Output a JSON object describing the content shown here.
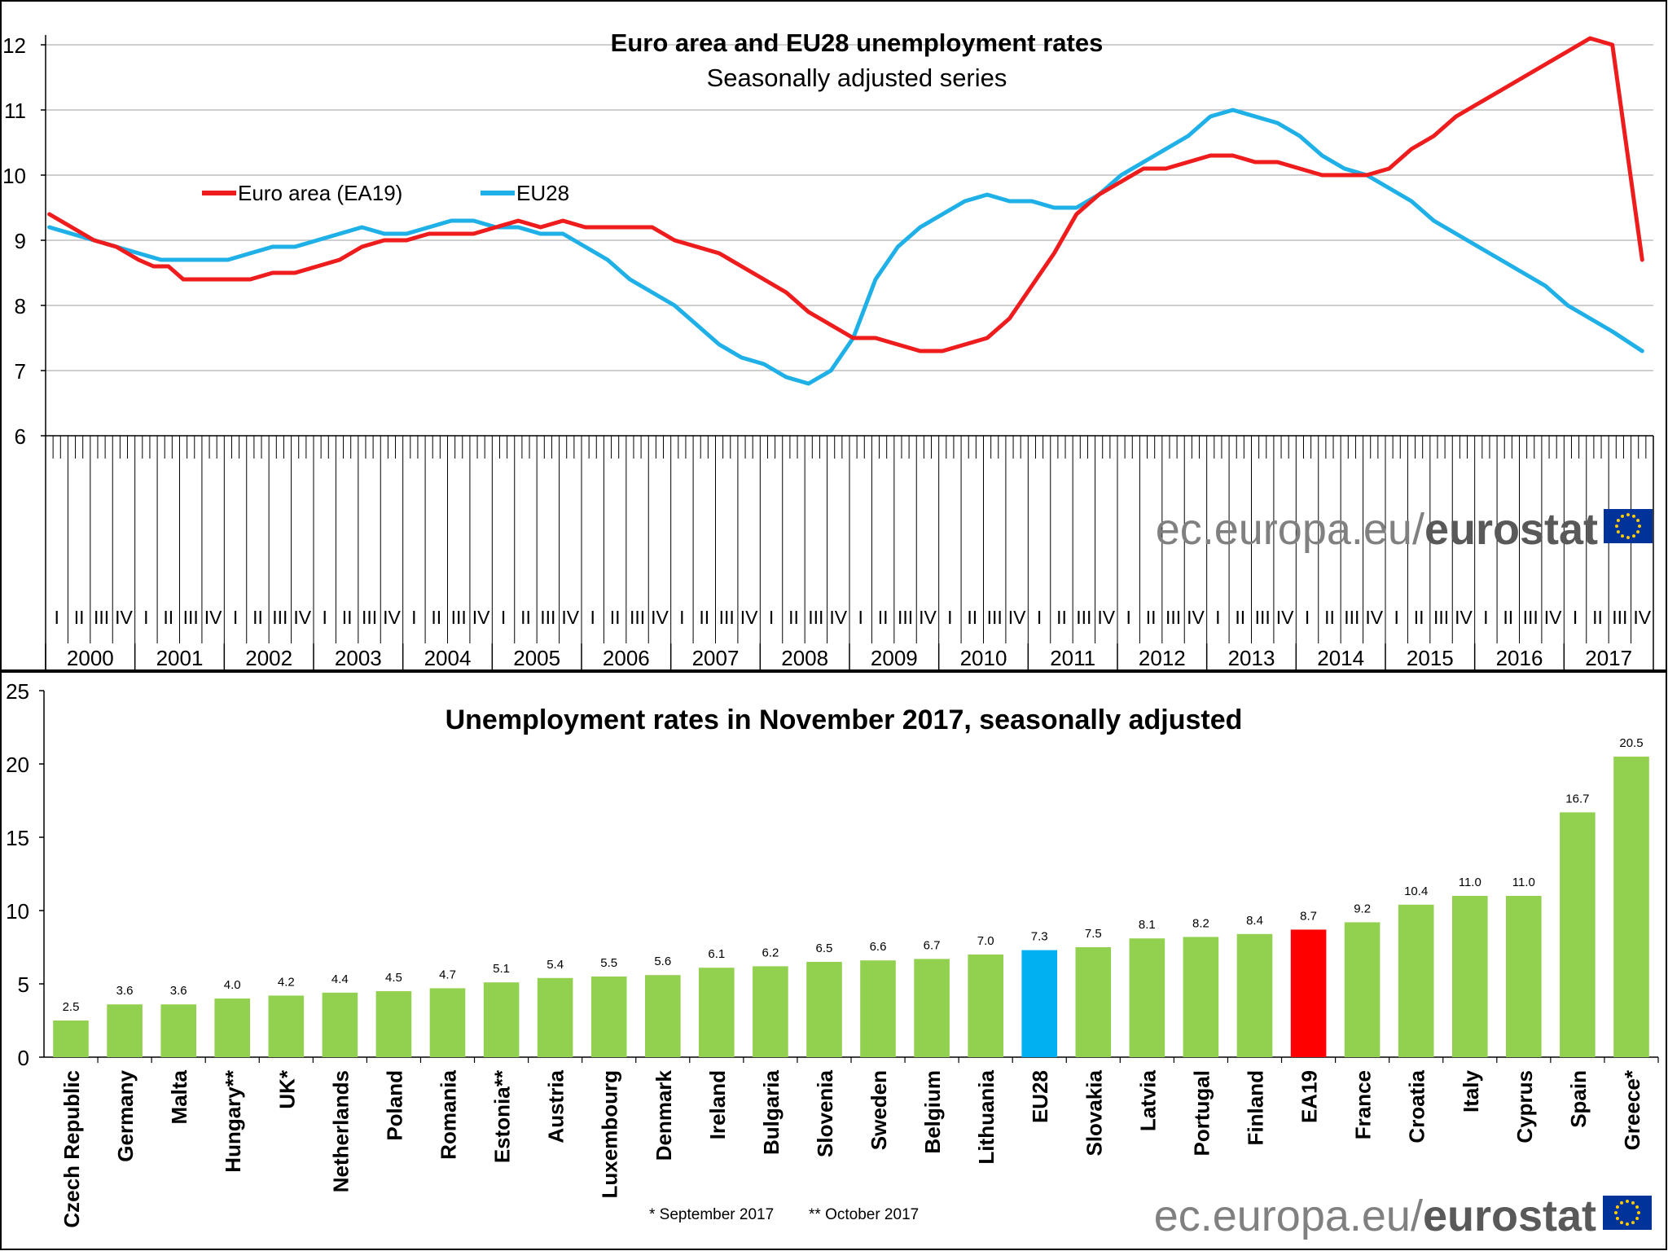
{
  "top": {
    "title": "Euro area and EU28 unemployment rates",
    "subtitle": "Seasonally adjusted series",
    "legend": [
      "Euro area (EA19)",
      "EU28"
    ],
    "watermark": {
      "plain": "ec.europa.eu/",
      "bold": "eurostat"
    }
  },
  "bottom": {
    "title": "Unemployment rates in November 2017, seasonally adjusted",
    "footnote1": "* September  2017",
    "footnote2": "** October 2017",
    "watermark": {
      "plain": "ec.europa.eu/",
      "bold": "eurostat"
    }
  },
  "colors": {
    "ea": "#ee1c1c",
    "eu": "#1eb0e6",
    "bar": "#92d050",
    "bar_eu": "#00b0f0",
    "bar_ea": "#ff0000"
  },
  "chart_data": [
    {
      "type": "line",
      "title": "Euro area and EU28 unemployment rates",
      "subtitle": "Seasonally adjusted series",
      "ylim": [
        6,
        12
      ],
      "yticks": [
        6,
        7,
        8,
        9,
        10,
        11,
        12
      ],
      "grid": true,
      "legend_position": "top-left",
      "quarter_labels": [
        "I",
        "II",
        "III",
        "IV"
      ],
      "years": [
        "2000",
        "2001",
        "2002",
        "2003",
        "2004",
        "2005",
        "2006",
        "2007",
        "2008",
        "2009",
        "2010",
        "2011",
        "2012",
        "2013",
        "2014",
        "2015",
        "2016",
        "2017"
      ],
      "x_start": "2000-01",
      "x_end": "2017-11",
      "series": [
        {
          "name": "Euro area (EA19)",
          "points": [
            [
              "2000-01",
              9.4
            ],
            [
              "2000-04",
              9.2
            ],
            [
              "2000-07",
              9.0
            ],
            [
              "2000-10",
              8.9
            ],
            [
              "2001-01",
              8.7
            ],
            [
              "2001-03",
              8.6
            ],
            [
              "2001-05",
              8.6
            ],
            [
              "2001-07",
              8.4
            ],
            [
              "2001-10",
              8.4
            ],
            [
              "2002-01",
              8.4
            ],
            [
              "2002-04",
              8.4
            ],
            [
              "2002-07",
              8.5
            ],
            [
              "2002-10",
              8.5
            ],
            [
              "2003-01",
              8.6
            ],
            [
              "2003-04",
              8.7
            ],
            [
              "2003-07",
              8.9
            ],
            [
              "2003-10",
              9.0
            ],
            [
              "2004-01",
              9.0
            ],
            [
              "2004-04",
              9.1
            ],
            [
              "2004-07",
              9.1
            ],
            [
              "2004-10",
              9.1
            ],
            [
              "2005-01",
              9.2
            ],
            [
              "2005-04",
              9.3
            ],
            [
              "2005-07",
              9.2
            ],
            [
              "2005-10",
              9.3
            ],
            [
              "2006-01",
              9.2
            ],
            [
              "2006-04",
              9.2
            ],
            [
              "2006-07",
              9.2
            ],
            [
              "2006-10",
              9.2
            ],
            [
              "2007-01",
              9.0
            ],
            [
              "2007-04",
              8.9
            ],
            [
              "2007-07",
              8.8
            ],
            [
              "2007-10",
              8.6
            ],
            [
              "2008-01",
              8.4
            ],
            [
              "2008-04",
              8.2
            ],
            [
              "2008-07",
              7.9
            ],
            [
              "2008-10",
              7.7
            ],
            [
              "2009-01",
              7.5
            ],
            [
              "2009-04",
              7.5
            ],
            [
              "2009-07",
              7.4
            ],
            [
              "2009-10",
              7.3
            ],
            [
              "2010-01",
              7.3
            ],
            [
              "2010-04",
              7.4
            ],
            [
              "2010-07",
              7.5
            ],
            [
              "2010-10",
              7.8
            ],
            [
              "2011-01",
              8.3
            ],
            [
              "2011-04",
              8.8
            ],
            [
              "2011-07",
              9.4
            ],
            [
              "2011-10",
              9.7
            ],
            [
              "2012-01",
              9.9
            ],
            [
              "2012-04",
              10.1
            ],
            [
              "2012-07",
              10.1
            ],
            [
              "2012-10",
              10.2
            ],
            [
              "2013-01",
              10.3
            ],
            [
              "2013-04",
              10.3
            ],
            [
              "2013-07",
              10.2
            ],
            [
              "2013-10",
              10.2
            ],
            [
              "2014-01",
              10.1
            ],
            [
              "2014-04",
              10.0
            ],
            [
              "2014-07",
              10.0
            ],
            [
              "2014-10",
              10.0
            ],
            [
              "2015-01",
              10.1
            ],
            [
              "2015-04",
              10.4
            ],
            [
              "2015-07",
              10.6
            ],
            [
              "2015-10",
              10.9
            ],
            [
              "2016-01",
              11.1
            ],
            [
              "2016-04",
              11.3
            ],
            [
              "2016-07",
              11.5
            ],
            [
              "2016-10",
              11.7
            ],
            [
              "2017-01",
              11.9
            ],
            [
              "2017-04",
              12.1
            ],
            [
              "2017-07",
              12.0
            ],
            [
              "2017-11",
              8.7
            ]
          ]
        },
        {
          "name": "EU28",
          "points": [
            [
              "2000-01",
              9.2
            ],
            [
              "2000-04",
              9.1
            ],
            [
              "2000-07",
              9.0
            ],
            [
              "2000-10",
              8.9
            ],
            [
              "2001-01",
              8.8
            ],
            [
              "2001-04",
              8.7
            ],
            [
              "2001-07",
              8.7
            ],
            [
              "2001-10",
              8.7
            ],
            [
              "2002-01",
              8.7
            ],
            [
              "2002-04",
              8.8
            ],
            [
              "2002-07",
              8.9
            ],
            [
              "2002-10",
              8.9
            ],
            [
              "2003-01",
              9.0
            ],
            [
              "2003-04",
              9.1
            ],
            [
              "2003-07",
              9.2
            ],
            [
              "2003-10",
              9.1
            ],
            [
              "2004-01",
              9.1
            ],
            [
              "2004-04",
              9.2
            ],
            [
              "2004-07",
              9.3
            ],
            [
              "2004-10",
              9.3
            ],
            [
              "2005-01",
              9.2
            ],
            [
              "2005-04",
              9.2
            ],
            [
              "2005-07",
              9.1
            ],
            [
              "2005-10",
              9.1
            ],
            [
              "2006-01",
              8.9
            ],
            [
              "2006-04",
              8.7
            ],
            [
              "2006-07",
              8.4
            ],
            [
              "2006-10",
              8.2
            ],
            [
              "2007-01",
              8.0
            ],
            [
              "2007-04",
              7.7
            ],
            [
              "2007-07",
              7.4
            ],
            [
              "2007-10",
              7.2
            ],
            [
              "2008-01",
              7.1
            ],
            [
              "2008-04",
              6.9
            ],
            [
              "2008-07",
              6.8
            ],
            [
              "2008-10",
              7.0
            ],
            [
              "2009-01",
              7.5
            ],
            [
              "2009-04",
              8.4
            ],
            [
              "2009-07",
              8.9
            ],
            [
              "2009-10",
              9.2
            ],
            [
              "2010-01",
              9.4
            ],
            [
              "2010-04",
              9.6
            ],
            [
              "2010-07",
              9.7
            ],
            [
              "2010-10",
              9.6
            ],
            [
              "2011-01",
              9.6
            ],
            [
              "2011-04",
              9.5
            ],
            [
              "2011-07",
              9.5
            ],
            [
              "2011-10",
              9.7
            ],
            [
              "2012-01",
              10.0
            ],
            [
              "2012-04",
              10.2
            ],
            [
              "2012-07",
              10.4
            ],
            [
              "2012-10",
              10.6
            ],
            [
              "2013-01",
              10.9
            ],
            [
              "2013-04",
              11.0
            ],
            [
              "2013-07",
              10.9
            ],
            [
              "2013-10",
              10.8
            ],
            [
              "2014-01",
              10.6
            ],
            [
              "2014-04",
              10.3
            ],
            [
              "2014-07",
              10.1
            ],
            [
              "2014-10",
              10.0
            ],
            [
              "2015-01",
              9.8
            ],
            [
              "2015-04",
              9.6
            ],
            [
              "2015-07",
              9.3
            ],
            [
              "2015-10",
              9.1
            ],
            [
              "2016-01",
              8.9
            ],
            [
              "2016-04",
              8.7
            ],
            [
              "2016-07",
              8.5
            ],
            [
              "2016-10",
              8.3
            ],
            [
              "2017-01",
              8.0
            ],
            [
              "2017-04",
              7.8
            ],
            [
              "2017-07",
              7.6
            ],
            [
              "2017-11",
              7.3
            ]
          ]
        }
      ]
    },
    {
      "type": "bar",
      "title": "Unemployment rates in November 2017, seasonally adjusted",
      "ylim": [
        0,
        25
      ],
      "yticks": [
        0,
        5,
        10,
        15,
        20,
        25
      ],
      "grid": false,
      "categories": [
        "Czech Republic",
        "Germany",
        "Malta",
        "Hungary**",
        "UK*",
        "Netherlands",
        "Poland",
        "Romania",
        "Estonia**",
        "Austria",
        "Luxembourg",
        "Denmark",
        "Ireland",
        "Bulgaria",
        "Slovenia",
        "Sweden",
        "Belgium",
        "Lithuania",
        "EU28",
        "Slovakia",
        "Latvia",
        "Portugal",
        "Finland",
        "EA19",
        "France",
        "Croatia",
        "Italy",
        "Cyprus",
        "Spain",
        "Greece*"
      ],
      "values": [
        2.5,
        3.6,
        3.6,
        4.0,
        4.2,
        4.4,
        4.5,
        4.7,
        5.1,
        5.4,
        5.5,
        5.6,
        6.1,
        6.2,
        6.5,
        6.6,
        6.7,
        7.0,
        7.3,
        7.5,
        8.1,
        8.2,
        8.4,
        8.7,
        9.2,
        10.4,
        11.0,
        11.0,
        16.7,
        20.5
      ],
      "value_labels": [
        "2.5",
        "3.6",
        "3.6",
        "4.0",
        "4.2",
        "4.4",
        "4.5",
        "4.7",
        "5.1",
        "5.4",
        "5.5",
        "5.6",
        "6.1",
        "6.2",
        "6.5",
        "6.6",
        "6.7",
        "7.0",
        "7.3",
        "7.5",
        "8.1",
        "8.2",
        "8.4",
        "8.7",
        "9.2",
        "10.4",
        "11.0",
        "11.0",
        "16.7",
        "20.5"
      ],
      "highlight": {
        "EU28": "#00b0f0",
        "EA19": "#ff0000"
      }
    }
  ]
}
